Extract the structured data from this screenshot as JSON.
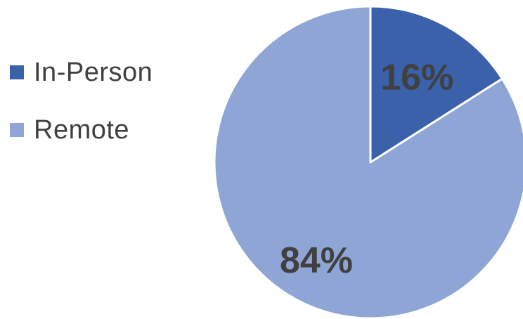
{
  "chart_data": {
    "type": "pie",
    "title": "",
    "legend_position": "left",
    "start_angle_deg": 0,
    "direction": "clockwise",
    "slices": [
      {
        "name": "In-Person",
        "value": 16,
        "label": "16%",
        "color": "#3a61aa"
      },
      {
        "name": "Remote",
        "value": 84,
        "label": "84%",
        "color": "#8fa5d5"
      }
    ],
    "legend": [
      {
        "name": "Remote",
        "label": "Remote",
        "color": "#8fa5d5"
      },
      {
        "name": "In-Person",
        "label": "In-Person",
        "color": "#3a61aa"
      }
    ]
  }
}
